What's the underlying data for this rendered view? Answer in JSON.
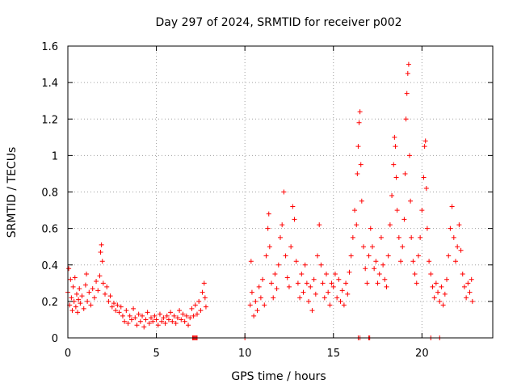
{
  "chart_data": {
    "type": "scatter",
    "title": "Day 297 of 2024, SRMTID for receiver p002",
    "xlabel": "GPS time / hours",
    "ylabel": "SRMTID / TECUs",
    "xlim": [
      0,
      24
    ],
    "ylim": [
      0,
      1.6
    ],
    "xticks": [
      0,
      5,
      10,
      15,
      20
    ],
    "xtick_labels": [
      "0",
      "5",
      "10",
      "15",
      "20"
    ],
    "yticks": [
      0,
      0.2,
      0.4,
      0.6,
      0.8,
      1.0,
      1.2,
      1.4,
      1.6
    ],
    "ytick_labels": [
      "0",
      "0.2",
      "0.4",
      "0.6",
      "0.8",
      "1",
      "1.2",
      "1.4",
      "1.6"
    ],
    "grid": true,
    "marker": "+",
    "color": "#ff0000",
    "series": [
      {
        "name": "SRMTID",
        "points": [
          [
            0.0,
            0.25
          ],
          [
            0.05,
            0.38
          ],
          [
            0.1,
            0.18
          ],
          [
            0.15,
            0.32
          ],
          [
            0.2,
            0.22
          ],
          [
            0.25,
            0.15
          ],
          [
            0.3,
            0.28
          ],
          [
            0.35,
            0.2
          ],
          [
            0.4,
            0.33
          ],
          [
            0.45,
            0.17
          ],
          [
            0.5,
            0.24
          ],
          [
            0.55,
            0.14
          ],
          [
            0.6,
            0.21
          ],
          [
            0.65,
            0.27
          ],
          [
            0.7,
            0.19
          ],
          [
            0.8,
            0.23
          ],
          [
            0.9,
            0.16
          ],
          [
            1.0,
            0.29
          ],
          [
            1.05,
            0.35
          ],
          [
            1.1,
            0.2
          ],
          [
            1.2,
            0.25
          ],
          [
            1.3,
            0.18
          ],
          [
            1.4,
            0.27
          ],
          [
            1.5,
            0.22
          ],
          [
            1.6,
            0.31
          ],
          [
            1.7,
            0.26
          ],
          [
            1.8,
            0.34
          ],
          [
            1.85,
            0.47
          ],
          [
            1.9,
            0.51
          ],
          [
            1.95,
            0.42
          ],
          [
            2.0,
            0.3
          ],
          [
            2.1,
            0.24
          ],
          [
            2.2,
            0.28
          ],
          [
            2.3,
            0.2
          ],
          [
            2.4,
            0.23
          ],
          [
            2.5,
            0.17
          ],
          [
            2.6,
            0.19
          ],
          [
            2.7,
            0.15
          ],
          [
            2.8,
            0.18
          ],
          [
            2.9,
            0.14
          ],
          [
            3.0,
            0.17
          ],
          [
            3.1,
            0.12
          ],
          [
            3.2,
            0.09
          ],
          [
            3.3,
            0.15
          ],
          [
            3.4,
            0.08
          ],
          [
            3.5,
            0.12
          ],
          [
            3.6,
            0.1
          ],
          [
            3.7,
            0.16
          ],
          [
            3.8,
            0.11
          ],
          [
            3.9,
            0.07
          ],
          [
            4.0,
            0.13
          ],
          [
            4.1,
            0.09
          ],
          [
            4.2,
            0.12
          ],
          [
            4.3,
            0.06
          ],
          [
            4.4,
            0.1
          ],
          [
            4.5,
            0.14
          ],
          [
            4.6,
            0.08
          ],
          [
            4.7,
            0.11
          ],
          [
            4.8,
            0.09
          ],
          [
            4.9,
            0.12
          ],
          [
            5.0,
            0.1
          ],
          [
            5.1,
            0.07
          ],
          [
            5.2,
            0.13
          ],
          [
            5.3,
            0.09
          ],
          [
            5.4,
            0.11
          ],
          [
            5.5,
            0.08
          ],
          [
            5.6,
            0.12
          ],
          [
            5.7,
            0.1
          ],
          [
            5.8,
            0.14
          ],
          [
            5.9,
            0.09
          ],
          [
            6.0,
            0.12
          ],
          [
            6.1,
            0.08
          ],
          [
            6.2,
            0.11
          ],
          [
            6.3,
            0.15
          ],
          [
            6.4,
            0.1
          ],
          [
            6.5,
            0.13
          ],
          [
            6.6,
            0.09
          ],
          [
            6.7,
            0.12
          ],
          [
            6.8,
            0.07
          ],
          [
            6.9,
            0.11
          ],
          [
            7.0,
            0.16
          ],
          [
            7.1,
            0.12
          ],
          [
            7.2,
            0.18
          ],
          [
            7.3,
            0.13
          ],
          [
            7.4,
            0.2
          ],
          [
            7.5,
            0.15
          ],
          [
            7.6,
            0.25
          ],
          [
            7.7,
            0.3
          ],
          [
            7.75,
            0.22
          ],
          [
            7.8,
            0.17
          ],
          [
            7.05,
            0.0
          ],
          [
            7.1,
            0.0
          ],
          [
            7.15,
            0.0
          ],
          [
            7.2,
            0.0
          ],
          [
            7.25,
            0.0
          ],
          [
            7.3,
            0.0
          ],
          [
            10.0,
            0.0
          ],
          [
            10.3,
            0.18
          ],
          [
            10.35,
            0.42
          ],
          [
            10.4,
            0.25
          ],
          [
            10.5,
            0.12
          ],
          [
            10.6,
            0.2
          ],
          [
            10.7,
            0.15
          ],
          [
            10.8,
            0.28
          ],
          [
            10.9,
            0.22
          ],
          [
            11.0,
            0.32
          ],
          [
            11.1,
            0.18
          ],
          [
            11.2,
            0.45
          ],
          [
            11.3,
            0.6
          ],
          [
            11.35,
            0.68
          ],
          [
            11.4,
            0.5
          ],
          [
            11.5,
            0.3
          ],
          [
            11.6,
            0.22
          ],
          [
            11.7,
            0.35
          ],
          [
            11.8,
            0.27
          ],
          [
            11.9,
            0.4
          ],
          [
            12.0,
            0.55
          ],
          [
            12.1,
            0.62
          ],
          [
            12.2,
            0.8
          ],
          [
            12.3,
            0.45
          ],
          [
            12.4,
            0.33
          ],
          [
            12.5,
            0.28
          ],
          [
            12.6,
            0.5
          ],
          [
            12.7,
            0.72
          ],
          [
            12.8,
            0.65
          ],
          [
            12.9,
            0.42
          ],
          [
            13.0,
            0.3
          ],
          [
            13.1,
            0.22
          ],
          [
            13.2,
            0.35
          ],
          [
            13.3,
            0.25
          ],
          [
            13.4,
            0.4
          ],
          [
            13.5,
            0.3
          ],
          [
            13.6,
            0.2
          ],
          [
            13.7,
            0.28
          ],
          [
            13.8,
            0.15
          ],
          [
            13.9,
            0.32
          ],
          [
            14.0,
            0.24
          ],
          [
            14.1,
            0.45
          ],
          [
            14.2,
            0.62
          ],
          [
            14.3,
            0.4
          ],
          [
            14.4,
            0.3
          ],
          [
            14.5,
            0.22
          ],
          [
            14.6,
            0.35
          ],
          [
            14.7,
            0.25
          ],
          [
            14.8,
            0.18
          ],
          [
            14.9,
            0.3
          ],
          [
            15.0,
            0.28
          ],
          [
            15.1,
            0.35
          ],
          [
            15.2,
            0.22
          ],
          [
            15.3,
            0.32
          ],
          [
            15.4,
            0.2
          ],
          [
            15.5,
            0.26
          ],
          [
            15.6,
            0.18
          ],
          [
            15.7,
            0.3
          ],
          [
            15.8,
            0.24
          ],
          [
            15.9,
            0.36
          ],
          [
            16.0,
            0.45
          ],
          [
            16.1,
            0.55
          ],
          [
            16.2,
            0.7
          ],
          [
            16.3,
            0.62
          ],
          [
            16.35,
            0.9
          ],
          [
            16.4,
            1.05
          ],
          [
            16.45,
            1.18
          ],
          [
            16.5,
            1.24
          ],
          [
            16.55,
            0.95
          ],
          [
            16.6,
            0.75
          ],
          [
            16.7,
            0.5
          ],
          [
            16.8,
            0.38
          ],
          [
            16.9,
            0.3
          ],
          [
            17.0,
            0.45
          ],
          [
            17.1,
            0.6
          ],
          [
            17.2,
            0.5
          ],
          [
            17.3,
            0.38
          ],
          [
            17.4,
            0.42
          ],
          [
            17.5,
            0.3
          ],
          [
            17.6,
            0.35
          ],
          [
            17.7,
            0.55
          ],
          [
            17.8,
            0.4
          ],
          [
            17.9,
            0.32
          ],
          [
            18.0,
            0.28
          ],
          [
            18.1,
            0.45
          ],
          [
            18.2,
            0.62
          ],
          [
            18.3,
            0.78
          ],
          [
            18.4,
            0.95
          ],
          [
            18.45,
            1.1
          ],
          [
            18.5,
            1.05
          ],
          [
            18.55,
            0.88
          ],
          [
            18.6,
            0.7
          ],
          [
            18.7,
            0.55
          ],
          [
            18.8,
            0.42
          ],
          [
            18.9,
            0.5
          ],
          [
            19.0,
            0.65
          ],
          [
            19.05,
            0.9
          ],
          [
            19.1,
            1.2
          ],
          [
            19.15,
            1.34
          ],
          [
            19.2,
            1.45
          ],
          [
            19.25,
            1.5
          ],
          [
            19.3,
            1.0
          ],
          [
            19.35,
            0.75
          ],
          [
            19.4,
            0.55
          ],
          [
            19.5,
            0.42
          ],
          [
            19.6,
            0.35
          ],
          [
            19.7,
            0.3
          ],
          [
            19.8,
            0.45
          ],
          [
            19.9,
            0.55
          ],
          [
            20.0,
            0.7
          ],
          [
            20.1,
            0.88
          ],
          [
            20.15,
            1.05
          ],
          [
            20.2,
            1.08
          ],
          [
            20.25,
            0.82
          ],
          [
            20.3,
            0.6
          ],
          [
            20.4,
            0.42
          ],
          [
            20.5,
            0.35
          ],
          [
            20.6,
            0.28
          ],
          [
            20.7,
            0.22
          ],
          [
            20.8,
            0.3
          ],
          [
            20.9,
            0.25
          ],
          [
            21.0,
            0.2
          ],
          [
            21.1,
            0.28
          ],
          [
            21.2,
            0.18
          ],
          [
            21.3,
            0.24
          ],
          [
            21.4,
            0.32
          ],
          [
            21.5,
            0.45
          ],
          [
            21.6,
            0.6
          ],
          [
            21.7,
            0.72
          ],
          [
            21.8,
            0.55
          ],
          [
            21.9,
            0.42
          ],
          [
            22.0,
            0.5
          ],
          [
            22.1,
            0.62
          ],
          [
            22.2,
            0.48
          ],
          [
            22.3,
            0.35
          ],
          [
            22.4,
            0.28
          ],
          [
            22.5,
            0.22
          ],
          [
            22.6,
            0.3
          ],
          [
            22.7,
            0.25
          ],
          [
            22.8,
            0.32
          ],
          [
            22.85,
            0.2
          ],
          [
            16.4,
            0.0
          ],
          [
            16.5,
            0.0
          ],
          [
            17.0,
            0.0
          ],
          [
            17.05,
            0.0
          ],
          [
            20.5,
            0.0
          ],
          [
            21.0,
            0.0
          ]
        ]
      }
    ]
  }
}
